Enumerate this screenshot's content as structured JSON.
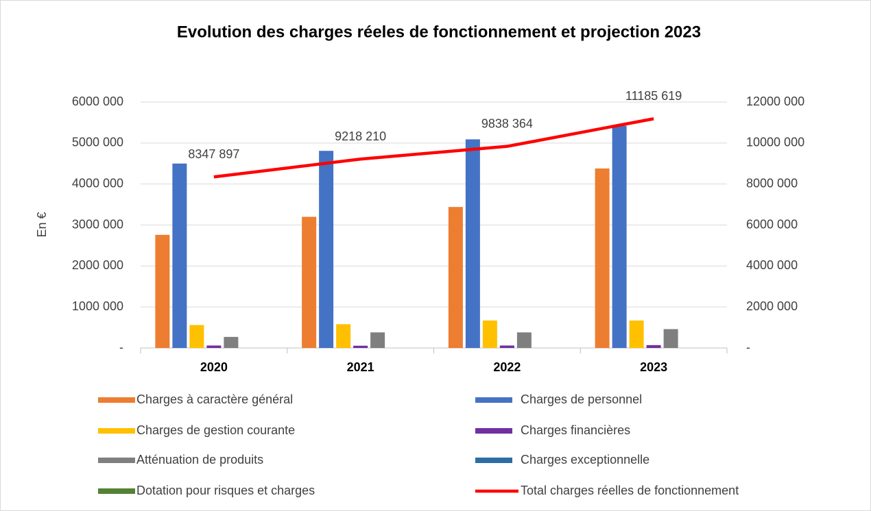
{
  "chart_data": {
    "type": "bar",
    "title": "Evolution des charges réeles de fonctionnement et projection 2023",
    "y_label": "En €",
    "categories": [
      "2020",
      "2021",
      "2022",
      "2023"
    ],
    "ylim": [
      0,
      6000000
    ],
    "yticks": [
      {
        "value": 0,
        "label": "-"
      },
      {
        "value": 1000000,
        "label": "1000 000"
      },
      {
        "value": 2000000,
        "label": "2000 000"
      },
      {
        "value": 3000000,
        "label": "3000 000"
      },
      {
        "value": 4000000,
        "label": "4000 000"
      },
      {
        "value": 5000000,
        "label": "5000 000"
      },
      {
        "value": 6000000,
        "label": "6000 000"
      }
    ],
    "y2lim": [
      0,
      12000000
    ],
    "y2ticks": [
      {
        "value": 0,
        "label": "-"
      },
      {
        "value": 2000000,
        "label": "2000 000"
      },
      {
        "value": 4000000,
        "label": "4000 000"
      },
      {
        "value": 6000000,
        "label": "6000 000"
      },
      {
        "value": 8000000,
        "label": "8000 000"
      },
      {
        "value": 10000000,
        "label": "10000 000"
      },
      {
        "value": 12000000,
        "label": "12000 000"
      }
    ],
    "grid": true,
    "legend": "bottom",
    "series": [
      {
        "name": "Charges à caractère général",
        "color": "#ED7D31",
        "values": [
          2760000,
          3200000,
          3440000,
          4380000
        ]
      },
      {
        "name": "Charges de personnel",
        "color": "#4472C4",
        "values": [
          4500000,
          4810000,
          5090000,
          5420000
        ]
      },
      {
        "name": "Charges de gestion courante",
        "color": "#FFC000",
        "values": [
          560000,
          580000,
          670000,
          670000
        ]
      },
      {
        "name": "Charges financières",
        "color": "#7030A0",
        "values": [
          60000,
          55000,
          60000,
          70000
        ]
      },
      {
        "name": "Atténuation de produits",
        "color": "#7F7F7F",
        "values": [
          270000,
          380000,
          380000,
          460000
        ]
      },
      {
        "name": "Charges exceptionnelle",
        "color": "#2E6DA4",
        "values": [
          0,
          0,
          0,
          0
        ]
      },
      {
        "name": "Dotation pour risques et charges",
        "color": "#548235",
        "values": [
          0,
          0,
          0,
          0
        ]
      },
      {
        "name": "Total charges réelles de fonctionnement",
        "color": "#FF0000",
        "type": "line",
        "axis": "y2",
        "values": [
          8347897,
          9218210,
          9838364,
          11185619
        ],
        "value_labels": [
          "8347 897",
          "9218 210",
          "9838 364",
          "11185 619"
        ]
      }
    ]
  }
}
